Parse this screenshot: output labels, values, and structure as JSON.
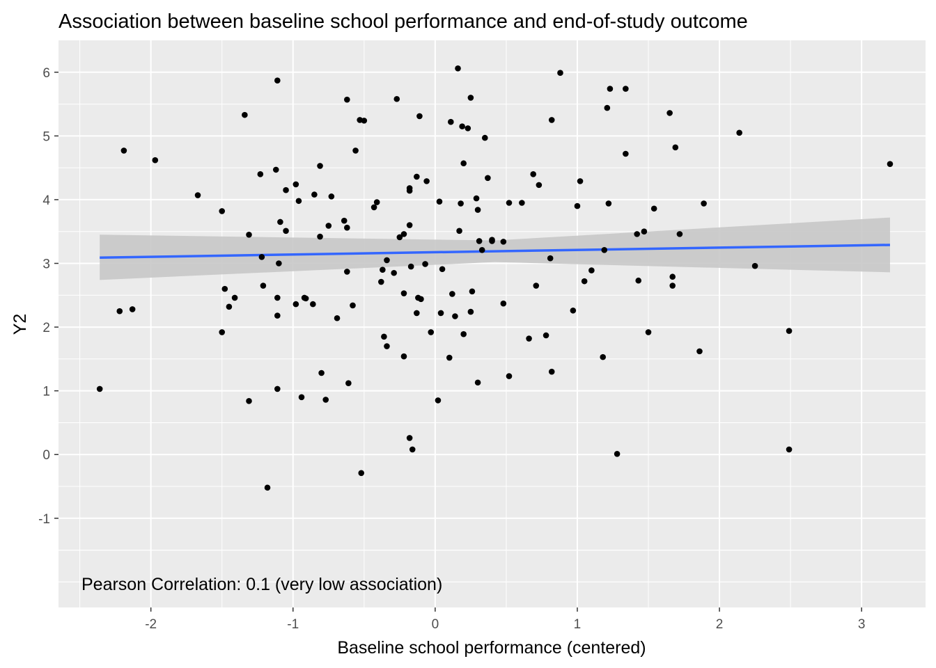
{
  "chart_data": {
    "type": "scatter",
    "title": "Association between baseline school performance and end-of-study outcome",
    "xlabel": "Baseline school performance (centered)",
    "ylabel": "Y2",
    "xlim": [
      -2.65,
      3.45
    ],
    "ylim": [
      -2.4,
      6.5
    ],
    "x_ticks": [
      -2,
      -1,
      0,
      1,
      2,
      3
    ],
    "x_tick_labels": [
      "-2",
      "-1",
      "0",
      "1",
      "2",
      "3"
    ],
    "y_ticks": [
      -1,
      0,
      1,
      2,
      3,
      4,
      5,
      6
    ],
    "y_tick_labels": [
      "-1",
      "0",
      "1",
      "2",
      "3",
      "4",
      "5",
      "6"
    ],
    "grid": true,
    "annotation": "Pearson Correlation: 0.1 (very low association)",
    "colors": {
      "panel": "#ebebeb",
      "grid": "#ffffff",
      "points": "#000000",
      "fit_line": "#3366ff",
      "ci_band": "#c8c8c8"
    },
    "fit": {
      "method": "linear",
      "x": [
        -2.36,
        3.2
      ],
      "y": [
        3.09,
        3.29
      ],
      "ci_lower": [
        2.74,
        2.86
      ],
      "ci_upper": [
        3.45,
        3.72
      ]
    },
    "points": [
      [
        -2.36,
        1.03
      ],
      [
        -2.22,
        2.25
      ],
      [
        -2.19,
        4.77
      ],
      [
        -2.13,
        2.28
      ],
      [
        -1.97,
        4.62
      ],
      [
        -1.67,
        4.07
      ],
      [
        -1.5,
        3.82
      ],
      [
        -1.5,
        1.92
      ],
      [
        -1.48,
        2.6
      ],
      [
        -1.45,
        2.32
      ],
      [
        -1.41,
        2.46
      ],
      [
        -1.34,
        5.33
      ],
      [
        -1.31,
        3.45
      ],
      [
        -1.31,
        0.84
      ],
      [
        -1.23,
        4.4
      ],
      [
        -1.22,
        3.1
      ],
      [
        -1.21,
        2.65
      ],
      [
        -1.18,
        -0.52
      ],
      [
        -1.12,
        4.47
      ],
      [
        -1.11,
        5.87
      ],
      [
        -1.11,
        2.46
      ],
      [
        -1.11,
        2.18
      ],
      [
        -1.11,
        1.03
      ],
      [
        -1.1,
        3.0
      ],
      [
        -1.09,
        3.65
      ],
      [
        -1.05,
        4.15
      ],
      [
        -1.05,
        3.51
      ],
      [
        -0.98,
        4.24
      ],
      [
        -0.98,
        2.36
      ],
      [
        -0.96,
        3.98
      ],
      [
        -0.94,
        0.9
      ],
      [
        -0.92,
        2.46
      ],
      [
        -0.91,
        2.45
      ],
      [
        -0.86,
        2.36
      ],
      [
        -0.85,
        4.08
      ],
      [
        -0.81,
        4.53
      ],
      [
        -0.81,
        3.42
      ],
      [
        -0.8,
        1.28
      ],
      [
        -0.77,
        0.86
      ],
      [
        -0.75,
        3.59
      ],
      [
        -0.73,
        4.05
      ],
      [
        -0.69,
        2.14
      ],
      [
        -0.64,
        3.67
      ],
      [
        -0.62,
        5.57
      ],
      [
        -0.62,
        3.56
      ],
      [
        -0.62,
        2.87
      ],
      [
        -0.61,
        1.12
      ],
      [
        -0.58,
        2.34
      ],
      [
        -0.56,
        4.77
      ],
      [
        -0.53,
        5.25
      ],
      [
        -0.52,
        -0.29
      ],
      [
        -0.5,
        5.24
      ],
      [
        -0.43,
        3.88
      ],
      [
        -0.41,
        3.96
      ],
      [
        -0.38,
        2.71
      ],
      [
        -0.37,
        2.9
      ],
      [
        -0.36,
        1.85
      ],
      [
        -0.34,
        3.05
      ],
      [
        -0.34,
        1.7
      ],
      [
        -0.29,
        2.85
      ],
      [
        -0.27,
        5.58
      ],
      [
        -0.25,
        3.41
      ],
      [
        -0.22,
        3.46
      ],
      [
        -0.22,
        2.53
      ],
      [
        -0.22,
        1.54
      ],
      [
        -0.18,
        4.18
      ],
      [
        -0.18,
        4.14
      ],
      [
        -0.18,
        3.6
      ],
      [
        -0.18,
        0.26
      ],
      [
        -0.17,
        2.95
      ],
      [
        -0.16,
        0.08
      ],
      [
        -0.13,
        4.36
      ],
      [
        -0.13,
        2.22
      ],
      [
        -0.12,
        2.46
      ],
      [
        -0.11,
        5.31
      ],
      [
        -0.1,
        2.44
      ],
      [
        -0.07,
        2.99
      ],
      [
        -0.06,
        4.29
      ],
      [
        -0.03,
        1.92
      ],
      [
        0.02,
        0.85
      ],
      [
        0.03,
        3.97
      ],
      [
        0.04,
        2.22
      ],
      [
        0.05,
        2.91
      ],
      [
        0.1,
        1.52
      ],
      [
        0.11,
        5.22
      ],
      [
        0.12,
        2.52
      ],
      [
        0.14,
        2.17
      ],
      [
        0.16,
        6.06
      ],
      [
        0.17,
        3.51
      ],
      [
        0.18,
        3.94
      ],
      [
        0.19,
        5.15
      ],
      [
        0.2,
        4.57
      ],
      [
        0.2,
        1.89
      ],
      [
        0.23,
        5.12
      ],
      [
        0.25,
        5.6
      ],
      [
        0.25,
        2.24
      ],
      [
        0.26,
        2.56
      ],
      [
        0.29,
        4.02
      ],
      [
        0.3,
        3.84
      ],
      [
        0.3,
        1.13
      ],
      [
        0.31,
        3.35
      ],
      [
        0.33,
        3.21
      ],
      [
        0.35,
        4.97
      ],
      [
        0.37,
        4.34
      ],
      [
        0.4,
        3.37
      ],
      [
        0.4,
        3.35
      ],
      [
        0.48,
        2.37
      ],
      [
        0.48,
        3.34
      ],
      [
        0.52,
        3.95
      ],
      [
        0.52,
        1.23
      ],
      [
        0.61,
        3.95
      ],
      [
        0.66,
        1.82
      ],
      [
        0.69,
        4.4
      ],
      [
        0.71,
        2.65
      ],
      [
        0.73,
        4.23
      ],
      [
        0.78,
        1.87
      ],
      [
        0.81,
        3.08
      ],
      [
        0.82,
        5.25
      ],
      [
        0.82,
        1.3
      ],
      [
        0.88,
        5.99
      ],
      [
        0.97,
        2.26
      ],
      [
        1.0,
        3.9
      ],
      [
        1.02,
        4.29
      ],
      [
        1.05,
        2.72
      ],
      [
        1.1,
        2.89
      ],
      [
        1.18,
        1.53
      ],
      [
        1.19,
        3.21
      ],
      [
        1.21,
        5.44
      ],
      [
        1.22,
        3.94
      ],
      [
        1.23,
        5.74
      ],
      [
        1.28,
        0.01
      ],
      [
        1.34,
        4.72
      ],
      [
        1.34,
        5.74
      ],
      [
        1.42,
        3.46
      ],
      [
        1.43,
        2.73
      ],
      [
        1.47,
        3.5
      ],
      [
        1.5,
        1.92
      ],
      [
        1.54,
        3.86
      ],
      [
        1.65,
        5.36
      ],
      [
        1.67,
        2.79
      ],
      [
        1.67,
        2.65
      ],
      [
        1.69,
        4.82
      ],
      [
        1.72,
        3.46
      ],
      [
        1.86,
        1.62
      ],
      [
        1.89,
        3.94
      ],
      [
        2.14,
        5.05
      ],
      [
        2.25,
        2.96
      ],
      [
        2.49,
        1.94
      ],
      [
        2.49,
        0.08
      ],
      [
        3.2,
        4.56
      ]
    ]
  }
}
